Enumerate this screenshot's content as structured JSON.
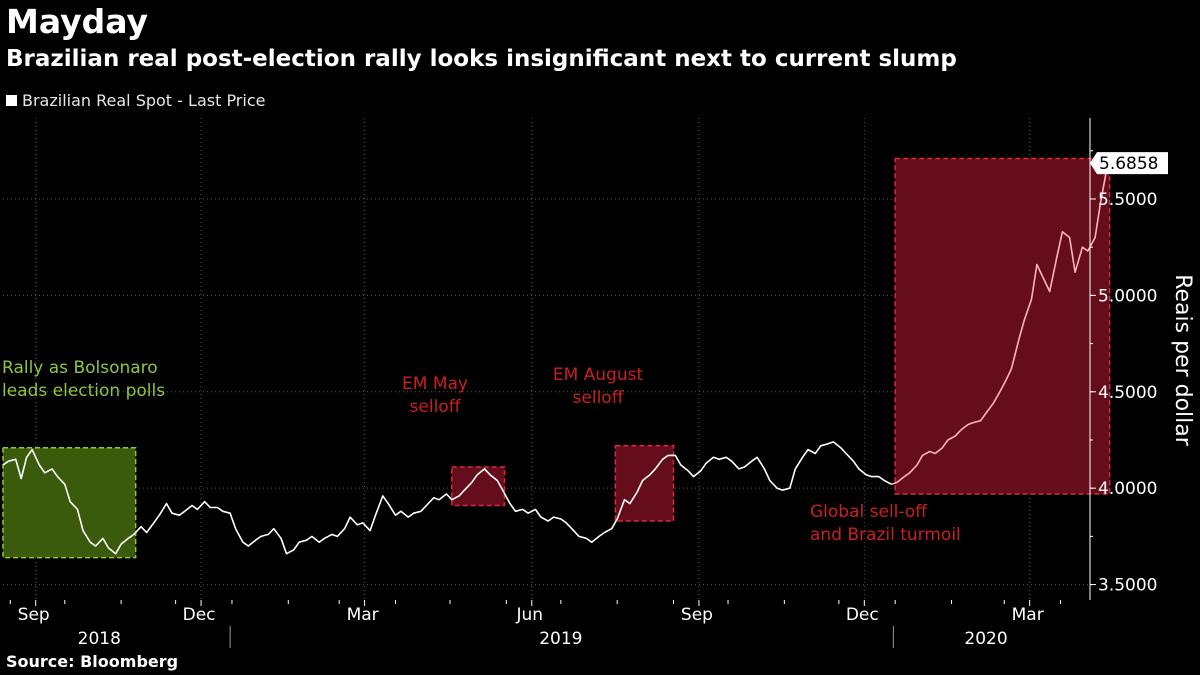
{
  "header": {
    "title": "Mayday",
    "subtitle": "Brazilian real post-election rally looks insignificant next to current slump"
  },
  "footer": {
    "source": "Source: Bloomberg"
  },
  "colors": {
    "background": "#000000",
    "line": "#ffffff",
    "line_highlight": "#ffb3bd",
    "red_box": "#6b0e1c",
    "red_border": "#e0283c",
    "green_box": "#3a5a0c",
    "green_border": "#8ec63f"
  },
  "chart_data": {
    "type": "line",
    "title": "Mayday",
    "subtitle": "Brazilian real post-election rally looks insignificant next to current slump",
    "ylabel": "Reais per dollar",
    "ylim": [
      3.42,
      5.92
    ],
    "xlim": [
      "2018-08-28",
      "2020-04-15"
    ],
    "grid": true,
    "legend": "top-left",
    "y_ticks": [
      {
        "value": 3.5,
        "label": "3.5000"
      },
      {
        "value": 4.0,
        "label": "4.0000"
      },
      {
        "value": 4.5,
        "label": "4.5000"
      },
      {
        "value": 5.0,
        "label": "5.0000"
      },
      {
        "value": 5.5,
        "label": "5.5000"
      }
    ],
    "x_month_ticks": [
      {
        "date": "2018-09-15",
        "label": "Sep"
      },
      {
        "date": "2018-12-15",
        "label": "Dec"
      },
      {
        "date": "2019-03-15",
        "label": "Mar"
      },
      {
        "date": "2019-06-15",
        "label": "Jun"
      },
      {
        "date": "2019-09-15",
        "label": "Sep"
      },
      {
        "date": "2019-12-15",
        "label": "Dec"
      },
      {
        "date": "2020-03-15",
        "label": "Mar"
      }
    ],
    "x_year_labels": [
      {
        "date": "2018-10-20",
        "label": "2018"
      },
      {
        "date": "2019-07-01",
        "label": "2019"
      },
      {
        "date": "2020-02-20",
        "label": "2020"
      }
    ],
    "year_dividers": [
      "2018-12-31",
      "2019-12-31"
    ],
    "last_value_label": "5.6858",
    "series": [
      {
        "name": "Brazilian Real Spot - Last Price",
        "points": [
          [
            "2018-08-28",
            4.12
          ],
          [
            "2018-08-31",
            4.14
          ],
          [
            "2018-09-04",
            4.15
          ],
          [
            "2018-09-07",
            4.05
          ],
          [
            "2018-09-10",
            4.16
          ],
          [
            "2018-09-13",
            4.2
          ],
          [
            "2018-09-17",
            4.12
          ],
          [
            "2018-09-20",
            4.08
          ],
          [
            "2018-09-24",
            4.1
          ],
          [
            "2018-09-27",
            4.06
          ],
          [
            "2018-10-01",
            4.02
          ],
          [
            "2018-10-04",
            3.93
          ],
          [
            "2018-10-08",
            3.89
          ],
          [
            "2018-10-11",
            3.78
          ],
          [
            "2018-10-15",
            3.72
          ],
          [
            "2018-10-18",
            3.7
          ],
          [
            "2018-10-22",
            3.74
          ],
          [
            "2018-10-25",
            3.69
          ],
          [
            "2018-10-29",
            3.66
          ],
          [
            "2018-11-01",
            3.71
          ],
          [
            "2018-11-05",
            3.74
          ],
          [
            "2018-11-08",
            3.76
          ],
          [
            "2018-11-12",
            3.8
          ],
          [
            "2018-11-15",
            3.77
          ],
          [
            "2018-11-19",
            3.82
          ],
          [
            "2018-11-22",
            3.86
          ],
          [
            "2018-11-26",
            3.92
          ],
          [
            "2018-11-29",
            3.87
          ],
          [
            "2018-12-03",
            3.86
          ],
          [
            "2018-12-06",
            3.88
          ],
          [
            "2018-12-10",
            3.91
          ],
          [
            "2018-12-13",
            3.89
          ],
          [
            "2018-12-17",
            3.93
          ],
          [
            "2018-12-20",
            3.9
          ],
          [
            "2018-12-24",
            3.9
          ],
          [
            "2018-12-27",
            3.88
          ],
          [
            "2018-12-31",
            3.87
          ],
          [
            "2019-01-03",
            3.79
          ],
          [
            "2019-01-07",
            3.72
          ],
          [
            "2019-01-10",
            3.7
          ],
          [
            "2019-01-14",
            3.73
          ],
          [
            "2019-01-17",
            3.75
          ],
          [
            "2019-01-21",
            3.76
          ],
          [
            "2019-01-24",
            3.79
          ],
          [
            "2019-01-28",
            3.74
          ],
          [
            "2019-01-31",
            3.66
          ],
          [
            "2019-02-04",
            3.68
          ],
          [
            "2019-02-07",
            3.72
          ],
          [
            "2019-02-11",
            3.73
          ],
          [
            "2019-02-14",
            3.75
          ],
          [
            "2019-02-18",
            3.72
          ],
          [
            "2019-02-21",
            3.74
          ],
          [
            "2019-02-25",
            3.76
          ],
          [
            "2019-02-28",
            3.75
          ],
          [
            "2019-03-04",
            3.79
          ],
          [
            "2019-03-07",
            3.85
          ],
          [
            "2019-03-11",
            3.81
          ],
          [
            "2019-03-14",
            3.82
          ],
          [
            "2019-03-18",
            3.78
          ],
          [
            "2019-03-21",
            3.86
          ],
          [
            "2019-03-25",
            3.96
          ],
          [
            "2019-03-28",
            3.92
          ],
          [
            "2019-04-01",
            3.86
          ],
          [
            "2019-04-04",
            3.88
          ],
          [
            "2019-04-08",
            3.85
          ],
          [
            "2019-04-11",
            3.87
          ],
          [
            "2019-04-15",
            3.88
          ],
          [
            "2019-04-18",
            3.91
          ],
          [
            "2019-04-22",
            3.95
          ],
          [
            "2019-04-25",
            3.94
          ],
          [
            "2019-04-29",
            3.97
          ],
          [
            "2019-05-02",
            3.94
          ],
          [
            "2019-05-06",
            3.96
          ],
          [
            "2019-05-09",
            3.99
          ],
          [
            "2019-05-13",
            4.03
          ],
          [
            "2019-05-16",
            4.07
          ],
          [
            "2019-05-20",
            4.1
          ],
          [
            "2019-05-23",
            4.07
          ],
          [
            "2019-05-27",
            4.04
          ],
          [
            "2019-05-30",
            3.99
          ],
          [
            "2019-06-03",
            3.92
          ],
          [
            "2019-06-06",
            3.88
          ],
          [
            "2019-06-10",
            3.89
          ],
          [
            "2019-06-13",
            3.87
          ],
          [
            "2019-06-17",
            3.89
          ],
          [
            "2019-06-20",
            3.85
          ],
          [
            "2019-06-24",
            3.83
          ],
          [
            "2019-06-27",
            3.85
          ],
          [
            "2019-07-01",
            3.84
          ],
          [
            "2019-07-04",
            3.82
          ],
          [
            "2019-07-08",
            3.78
          ],
          [
            "2019-07-11",
            3.75
          ],
          [
            "2019-07-15",
            3.74
          ],
          [
            "2019-07-18",
            3.72
          ],
          [
            "2019-07-22",
            3.75
          ],
          [
            "2019-07-25",
            3.77
          ],
          [
            "2019-07-29",
            3.79
          ],
          [
            "2019-08-01",
            3.84
          ],
          [
            "2019-08-05",
            3.94
          ],
          [
            "2019-08-08",
            3.92
          ],
          [
            "2019-08-12",
            3.98
          ],
          [
            "2019-08-15",
            4.04
          ],
          [
            "2019-08-19",
            4.07
          ],
          [
            "2019-08-22",
            4.1
          ],
          [
            "2019-08-26",
            4.15
          ],
          [
            "2019-08-29",
            4.17
          ],
          [
            "2019-09-02",
            4.17
          ],
          [
            "2019-09-05",
            4.12
          ],
          [
            "2019-09-09",
            4.09
          ],
          [
            "2019-09-12",
            4.06
          ],
          [
            "2019-09-16",
            4.09
          ],
          [
            "2019-09-19",
            4.13
          ],
          [
            "2019-09-23",
            4.16
          ],
          [
            "2019-09-26",
            4.15
          ],
          [
            "2019-09-30",
            4.16
          ],
          [
            "2019-10-03",
            4.14
          ],
          [
            "2019-10-07",
            4.1
          ],
          [
            "2019-10-10",
            4.11
          ],
          [
            "2019-10-14",
            4.14
          ],
          [
            "2019-10-17",
            4.16
          ],
          [
            "2019-10-21",
            4.1
          ],
          [
            "2019-10-24",
            4.04
          ],
          [
            "2019-10-28",
            4.0
          ],
          [
            "2019-10-31",
            3.99
          ],
          [
            "2019-11-04",
            4.0
          ],
          [
            "2019-11-07",
            4.1
          ],
          [
            "2019-11-11",
            4.16
          ],
          [
            "2019-11-14",
            4.2
          ],
          [
            "2019-11-18",
            4.18
          ],
          [
            "2019-11-21",
            4.22
          ],
          [
            "2019-11-25",
            4.23
          ],
          [
            "2019-11-28",
            4.24
          ],
          [
            "2019-12-02",
            4.21
          ],
          [
            "2019-12-05",
            4.18
          ],
          [
            "2019-12-09",
            4.14
          ],
          [
            "2019-12-12",
            4.1
          ],
          [
            "2019-12-16",
            4.07
          ],
          [
            "2019-12-19",
            4.06
          ],
          [
            "2019-12-23",
            4.06
          ],
          [
            "2019-12-26",
            4.04
          ],
          [
            "2019-12-30",
            4.02
          ],
          [
            "2020-01-02",
            4.03
          ],
          [
            "2020-01-06",
            4.06
          ],
          [
            "2020-01-09",
            4.08
          ],
          [
            "2020-01-13",
            4.12
          ],
          [
            "2020-01-16",
            4.17
          ],
          [
            "2020-01-20",
            4.19
          ],
          [
            "2020-01-23",
            4.18
          ],
          [
            "2020-01-27",
            4.21
          ],
          [
            "2020-01-30",
            4.25
          ],
          [
            "2020-02-03",
            4.27
          ],
          [
            "2020-02-06",
            4.3
          ],
          [
            "2020-02-10",
            4.33
          ],
          [
            "2020-02-13",
            4.34
          ],
          [
            "2020-02-17",
            4.35
          ],
          [
            "2020-02-20",
            4.39
          ],
          [
            "2020-02-24",
            4.44
          ],
          [
            "2020-02-27",
            4.49
          ],
          [
            "2020-03-02",
            4.56
          ],
          [
            "2020-03-05",
            4.62
          ],
          [
            "2020-03-09",
            4.77
          ],
          [
            "2020-03-12",
            4.87
          ],
          [
            "2020-03-16",
            4.98
          ],
          [
            "2020-03-19",
            5.16
          ],
          [
            "2020-03-23",
            5.08
          ],
          [
            "2020-03-26",
            5.02
          ],
          [
            "2020-03-30",
            5.2
          ],
          [
            "2020-04-02",
            5.33
          ],
          [
            "2020-04-06",
            5.3
          ],
          [
            "2020-04-09",
            5.12
          ],
          [
            "2020-04-13",
            5.25
          ],
          [
            "2020-04-16",
            5.23
          ],
          [
            "2020-04-20",
            5.3
          ],
          [
            "2020-04-23",
            5.48
          ],
          [
            "2020-04-27",
            5.6858
          ]
        ]
      }
    ],
    "annotations": [
      {
        "text": [
          "Rally as Bolsonaro",
          "leads election polls"
        ],
        "color": "green"
      },
      {
        "text": [
          "EM May",
          "selloff"
        ],
        "color": "red"
      },
      {
        "text": [
          "EM August",
          "selloff"
        ],
        "color": "red"
      },
      {
        "text": [
          "Global sell-off",
          "and Brazil turmoil"
        ],
        "color": "red"
      }
    ],
    "highlight_ranges": [
      {
        "from": "2018-08-28",
        "to": "2018-11-09",
        "ymin": 3.64,
        "ymax": 4.21,
        "color": "green"
      },
      {
        "from": "2019-05-02",
        "to": "2019-05-31",
        "ymin": 3.91,
        "ymax": 4.11,
        "color": "red"
      },
      {
        "from": "2019-07-31",
        "to": "2019-09-01",
        "ymin": 3.83,
        "ymax": 4.22,
        "color": "red"
      },
      {
        "from": "2020-01-01",
        "to": "2020-04-28",
        "ymin": 3.97,
        "ymax": 5.71,
        "color": "red"
      }
    ]
  }
}
